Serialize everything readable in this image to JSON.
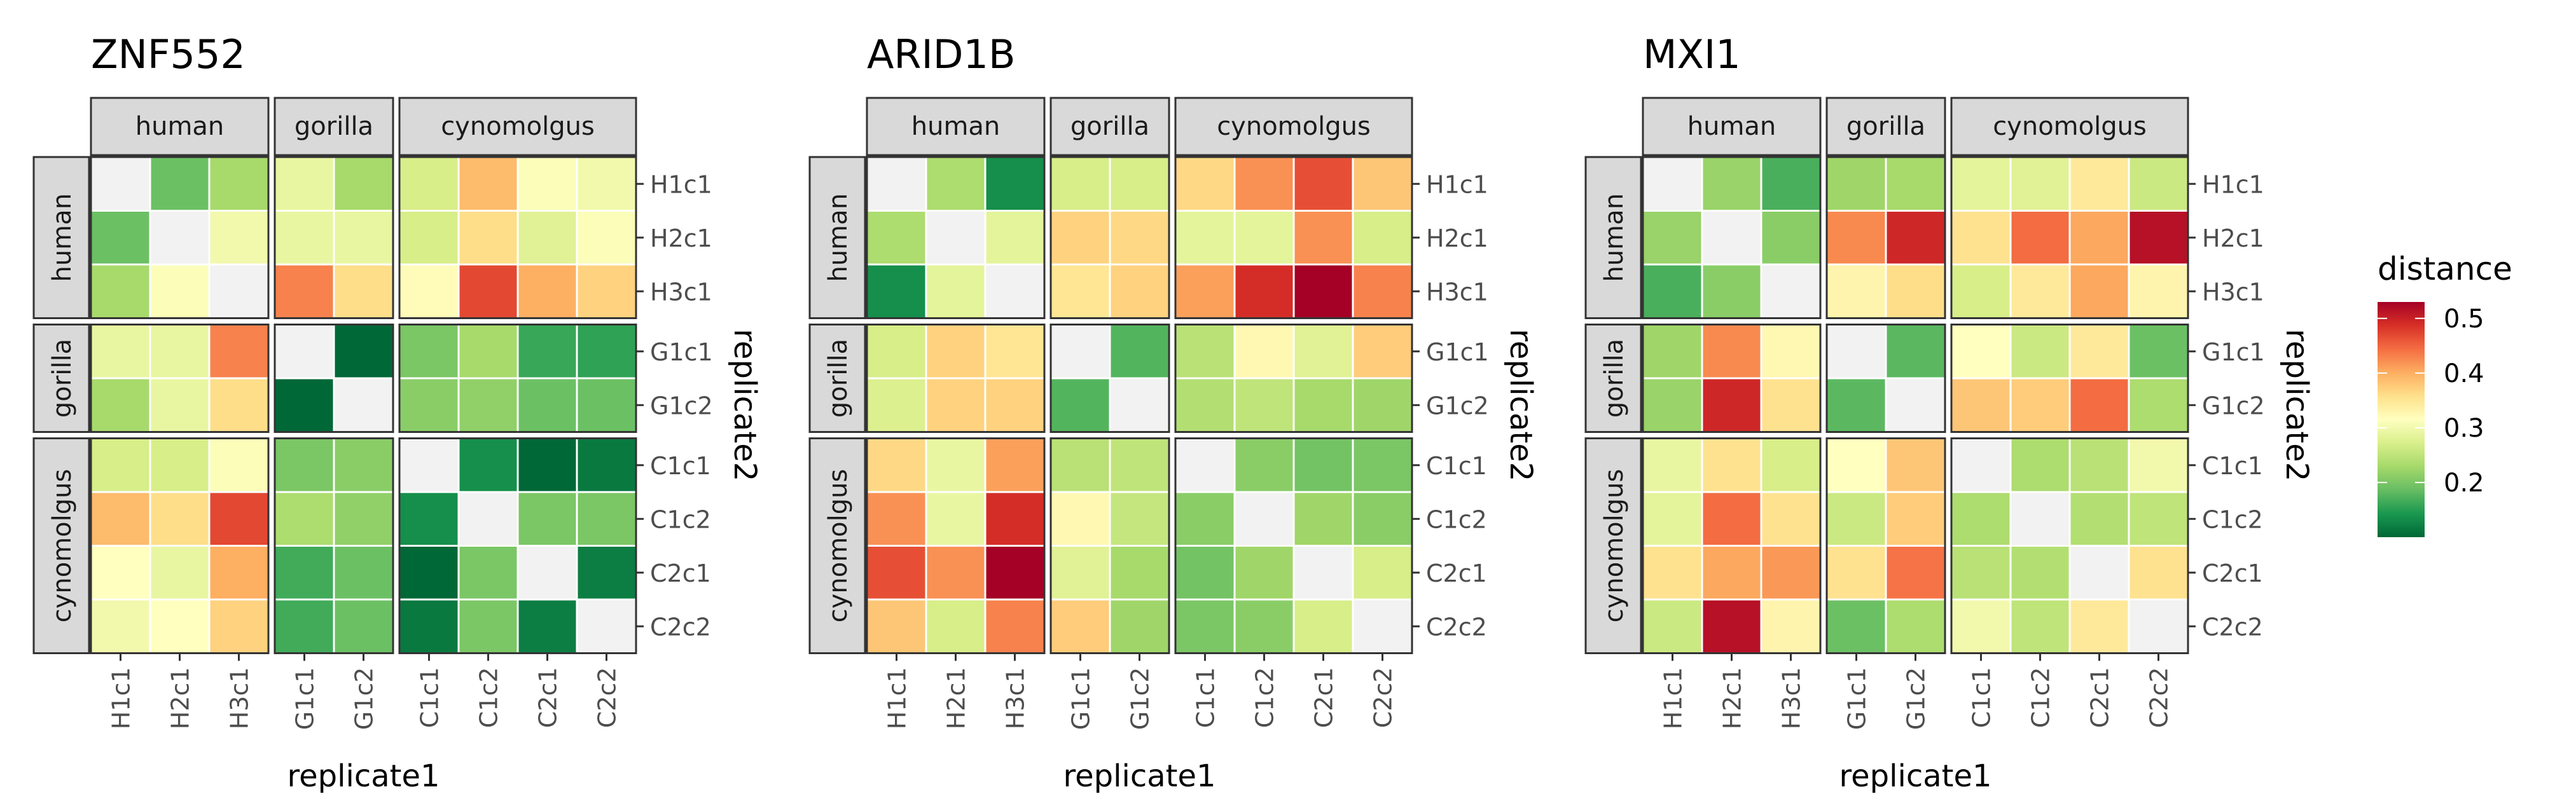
{
  "chart_data": [
    {
      "type": "heatmap",
      "title": "ZNF552",
      "xlabel": "replicate1",
      "ylabel": "replicate2",
      "groups": [
        {
          "name": "human",
          "members": [
            "H1c1",
            "H2c1",
            "H3c1"
          ]
        },
        {
          "name": "gorilla",
          "members": [
            "G1c1",
            "G1c2"
          ]
        },
        {
          "name": "cynomolgus",
          "members": [
            "C1c1",
            "C1c2",
            "C2c1",
            "C2c2"
          ]
        }
      ],
      "labels": [
        "H1c1",
        "H2c1",
        "H3c1",
        "G1c1",
        "G1c2",
        "C1c1",
        "C1c2",
        "C2c1",
        "C2c2"
      ],
      "values": [
        [
          null,
          0.19,
          0.23,
          0.29,
          0.23,
          0.27,
          0.39,
          0.31,
          0.3
        ],
        [
          0.19,
          null,
          0.3,
          0.29,
          0.29,
          0.27,
          0.36,
          0.28,
          0.31
        ],
        [
          0.23,
          0.31,
          null,
          0.43,
          0.36,
          0.32,
          0.47,
          0.4,
          0.37
        ],
        [
          0.29,
          0.29,
          0.43,
          null,
          0.1,
          0.2,
          0.23,
          0.16,
          0.155
        ],
        [
          0.23,
          0.29,
          0.36,
          0.1,
          null,
          0.21,
          0.215,
          0.19,
          0.19
        ],
        [
          0.27,
          0.27,
          0.31,
          0.2,
          0.21,
          null,
          0.135,
          0.1,
          0.115
        ],
        [
          0.39,
          0.36,
          0.47,
          0.235,
          0.215,
          0.135,
          null,
          0.2,
          0.2
        ],
        [
          0.315,
          0.29,
          0.4,
          0.165,
          0.19,
          0.1,
          0.2,
          null,
          0.12
        ],
        [
          0.3,
          0.315,
          0.37,
          0.165,
          0.19,
          0.115,
          0.2,
          0.12,
          null
        ]
      ]
    },
    {
      "type": "heatmap",
      "title": "ARID1B",
      "xlabel": "replicate1",
      "ylabel": "replicate2",
      "groups": [
        {
          "name": "human",
          "members": [
            "H1c1",
            "H2c1",
            "H3c1"
          ]
        },
        {
          "name": "gorilla",
          "members": [
            "G1c1",
            "G1c2"
          ]
        },
        {
          "name": "cynomolgus",
          "members": [
            "C1c1",
            "C1c2",
            "C2c1",
            "C2c2"
          ]
        }
      ],
      "labels": [
        "H1c1",
        "H2c1",
        "H3c1",
        "G1c1",
        "G1c2",
        "C1c1",
        "C1c2",
        "C2c1",
        "C2c2"
      ],
      "values": [
        [
          null,
          0.235,
          0.135,
          0.27,
          0.27,
          0.365,
          0.42,
          0.465,
          0.38
        ],
        [
          0.235,
          null,
          0.285,
          0.37,
          0.365,
          0.285,
          0.285,
          0.42,
          0.27
        ],
        [
          0.135,
          0.285,
          null,
          0.35,
          0.37,
          0.41,
          0.49,
          0.53,
          0.43
        ],
        [
          0.27,
          0.37,
          0.35,
          null,
          0.175,
          0.245,
          0.325,
          0.28,
          0.375
        ],
        [
          0.275,
          0.37,
          0.37,
          0.175,
          null,
          0.24,
          0.25,
          0.23,
          0.225
        ],
        [
          0.365,
          0.29,
          0.41,
          0.245,
          0.25,
          null,
          0.21,
          0.195,
          0.2
        ],
        [
          0.42,
          0.29,
          0.49,
          0.325,
          0.255,
          0.21,
          null,
          0.225,
          0.21
        ],
        [
          0.465,
          0.42,
          0.53,
          0.28,
          0.23,
          0.195,
          0.225,
          null,
          0.27
        ],
        [
          0.38,
          0.27,
          0.43,
          0.375,
          0.225,
          0.2,
          0.21,
          0.27,
          null
        ]
      ]
    },
    {
      "type": "heatmap",
      "title": "MXI1",
      "xlabel": "replicate1",
      "ylabel": "replicate2",
      "groups": [
        {
          "name": "human",
          "members": [
            "H1c1",
            "H2c1",
            "H3c1"
          ]
        },
        {
          "name": "gorilla",
          "members": [
            "G1c1",
            "G1c2"
          ]
        },
        {
          "name": "cynomolgus",
          "members": [
            "C1c1",
            "C1c2",
            "C2c1",
            "C2c2"
          ]
        }
      ],
      "labels": [
        "H1c1",
        "H2c1",
        "H3c1",
        "G1c1",
        "G1c2",
        "C1c1",
        "C1c2",
        "C2c1",
        "C2c2"
      ],
      "values": [
        [
          null,
          0.22,
          0.17,
          0.225,
          0.23,
          0.285,
          0.28,
          0.345,
          0.26
        ],
        [
          0.22,
          null,
          0.21,
          0.425,
          0.495,
          0.355,
          0.445,
          0.405,
          0.515
        ],
        [
          0.17,
          0.21,
          null,
          0.33,
          0.36,
          0.27,
          0.345,
          0.405,
          0.33
        ],
        [
          0.225,
          0.425,
          0.325,
          null,
          0.18,
          0.315,
          0.26,
          0.345,
          0.19
        ],
        [
          0.22,
          0.495,
          0.355,
          0.18,
          null,
          0.38,
          0.375,
          0.445,
          0.235
        ],
        [
          0.29,
          0.355,
          0.27,
          0.315,
          0.38,
          null,
          0.235,
          0.245,
          0.3
        ],
        [
          0.285,
          0.445,
          0.355,
          0.26,
          0.375,
          0.235,
          null,
          0.24,
          0.25
        ],
        [
          0.355,
          0.405,
          0.415,
          0.355,
          0.44,
          0.245,
          0.24,
          null,
          0.355
        ],
        [
          0.26,
          0.515,
          0.33,
          0.19,
          0.235,
          0.3,
          0.25,
          0.345,
          null
        ]
      ]
    }
  ],
  "legend": {
    "title": "distance",
    "range": [
      0.1,
      0.53
    ],
    "ticks": [
      0.5,
      0.4,
      0.3,
      0.2
    ],
    "tick_labels": [
      "0.5",
      "0.4",
      "0.3",
      "0.2"
    ],
    "palette": "RdYlGn (reversed)",
    "colors": [
      "#006837",
      "#1a9850",
      "#66bd63",
      "#a6d96a",
      "#d9ef8b",
      "#ffffbf",
      "#fee08b",
      "#fdae61",
      "#f46d43",
      "#d73027",
      "#a50026"
    ],
    "na_color": "#f2f2f2"
  },
  "style": {
    "strip_fill": "#d9d9d9",
    "border": "#333333",
    "tick_text": "#4d4d4d"
  }
}
